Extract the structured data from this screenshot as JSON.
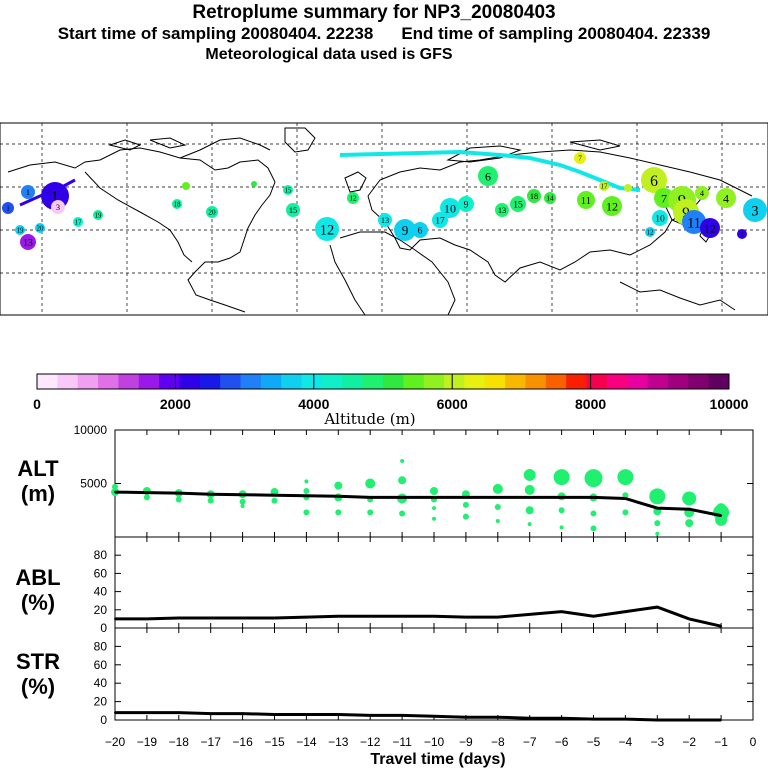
{
  "header": {
    "title": "Retroplume summary for NP3_20080403",
    "start_label": "Start time of sampling 20080404. 22238",
    "end_label": "End time of sampling 20080404. 22339",
    "met_label": "Meteorological data used is GFS"
  },
  "colorbar": {
    "ticks": [
      "0",
      "2000",
      "4000",
      "6000",
      "8000",
      "10000"
    ],
    "label": "Altitude (m)",
    "colors": [
      "#fde8fd",
      "#f8c8f8",
      "#f0a0f0",
      "#e070e8",
      "#c040e0",
      "#9a18e8",
      "#6000f0",
      "#3000e8",
      "#1818e8",
      "#2050f0",
      "#2080f8",
      "#10a8f8",
      "#10d0f0",
      "#10e8e8",
      "#10f0c8",
      "#10f0a0",
      "#20f070",
      "#30e840",
      "#60f020",
      "#90f020",
      "#c0f020",
      "#e8f010",
      "#f8e000",
      "#f8b800",
      "#f89000",
      "#f86000",
      "#f82000",
      "#f80050",
      "#f80080",
      "#e800a0",
      "#c00090",
      "#a00080",
      "#800070",
      "#600060"
    ]
  },
  "map_labels": [
    "1",
    "3",
    "4",
    "6",
    "7",
    "9",
    "10",
    "11",
    "12",
    "13",
    "14",
    "15",
    "16",
    "17",
    "18",
    "19",
    "20"
  ],
  "axes": {
    "alt_label": "ALT",
    "alt_unit": "(m)",
    "abl_label": "ABL",
    "abl_unit": "(%)",
    "str_label": "STR",
    "str_unit": "(%)",
    "xlabel": "Travel time (days)"
  },
  "chart_data": [
    {
      "type": "line",
      "name": "ALT",
      "ylabel": "ALT (m)",
      "ylim": [
        0,
        10000
      ],
      "yticks": [
        5000,
        10000
      ],
      "x": [
        -20,
        -19,
        -18,
        -17,
        -16,
        -15,
        -14,
        -13,
        -12,
        -11,
        -10,
        -9,
        -8,
        -7,
        -6,
        -5,
        -4,
        -3,
        -2,
        -1
      ],
      "values": [
        4200,
        4150,
        4100,
        4000,
        3950,
        3900,
        3850,
        3800,
        3700,
        3700,
        3700,
        3700,
        3700,
        3700,
        3700,
        3700,
        3600,
        2700,
        2600,
        2000
      ],
      "scatter": [
        {
          "x": -20,
          "y": 4200,
          "s": 4
        },
        {
          "x": -20,
          "y": 4700,
          "s": 3
        },
        {
          "x": -19,
          "y": 4300,
          "s": 4
        },
        {
          "x": -19,
          "y": 3700,
          "s": 3
        },
        {
          "x": -18,
          "y": 4100,
          "s": 4
        },
        {
          "x": -18,
          "y": 3500,
          "s": 3
        },
        {
          "x": -17,
          "y": 4000,
          "s": 4
        },
        {
          "x": -17,
          "y": 3400,
          "s": 3
        },
        {
          "x": -16,
          "y": 4000,
          "s": 4
        },
        {
          "x": -16,
          "y": 3300,
          "s": 3
        },
        {
          "x": -16,
          "y": 2900,
          "s": 2
        },
        {
          "x": -15,
          "y": 4200,
          "s": 4
        },
        {
          "x": -15,
          "y": 3400,
          "s": 3
        },
        {
          "x": -14,
          "y": 4300,
          "s": 3
        },
        {
          "x": -14,
          "y": 3700,
          "s": 3
        },
        {
          "x": -14,
          "y": 2300,
          "s": 3
        },
        {
          "x": -14,
          "y": 5200,
          "s": 2
        },
        {
          "x": -13,
          "y": 4800,
          "s": 4
        },
        {
          "x": -13,
          "y": 3700,
          "s": 4
        },
        {
          "x": -13,
          "y": 2300,
          "s": 3
        },
        {
          "x": -12,
          "y": 5000,
          "s": 5
        },
        {
          "x": -12,
          "y": 3500,
          "s": 3
        },
        {
          "x": -12,
          "y": 2300,
          "s": 3
        },
        {
          "x": -11,
          "y": 5300,
          "s": 4
        },
        {
          "x": -11,
          "y": 3600,
          "s": 5
        },
        {
          "x": -11,
          "y": 2200,
          "s": 3
        },
        {
          "x": -11,
          "y": 7100,
          "s": 2
        },
        {
          "x": -10,
          "y": 4300,
          "s": 4
        },
        {
          "x": -10,
          "y": 3500,
          "s": 3
        },
        {
          "x": -10,
          "y": 2700,
          "s": 2
        },
        {
          "x": -10,
          "y": 1700,
          "s": 2
        },
        {
          "x": -9,
          "y": 4000,
          "s": 4
        },
        {
          "x": -9,
          "y": 3000,
          "s": 3
        },
        {
          "x": -9,
          "y": 1900,
          "s": 3
        },
        {
          "x": -8,
          "y": 4500,
          "s": 5
        },
        {
          "x": -8,
          "y": 2800,
          "s": 3
        },
        {
          "x": -8,
          "y": 1500,
          "s": 2
        },
        {
          "x": -7,
          "y": 5800,
          "s": 6
        },
        {
          "x": -7,
          "y": 4400,
          "s": 5
        },
        {
          "x": -7,
          "y": 2500,
          "s": 4
        },
        {
          "x": -7,
          "y": 1200,
          "s": 2
        },
        {
          "x": -6,
          "y": 5600,
          "s": 8
        },
        {
          "x": -6,
          "y": 3800,
          "s": 4
        },
        {
          "x": -6,
          "y": 2500,
          "s": 3
        },
        {
          "x": -6,
          "y": 900,
          "s": 2
        },
        {
          "x": -5,
          "y": 5500,
          "s": 9
        },
        {
          "x": -5,
          "y": 3700,
          "s": 4
        },
        {
          "x": -5,
          "y": 2200,
          "s": 3
        },
        {
          "x": -5,
          "y": 800,
          "s": 3
        },
        {
          "x": -4,
          "y": 5600,
          "s": 8
        },
        {
          "x": -4,
          "y": 3900,
          "s": 3
        },
        {
          "x": -4,
          "y": 2300,
          "s": 3
        },
        {
          "x": -3,
          "y": 3800,
          "s": 8
        },
        {
          "x": -3,
          "y": 2400,
          "s": 4
        },
        {
          "x": -3,
          "y": 1300,
          "s": 3
        },
        {
          "x": -3,
          "y": 300,
          "s": 2
        },
        {
          "x": -2,
          "y": 3600,
          "s": 7
        },
        {
          "x": -2,
          "y": 2300,
          "s": 5
        },
        {
          "x": -2,
          "y": 1300,
          "s": 4
        },
        {
          "x": -1,
          "y": 2300,
          "s": 8
        },
        {
          "x": -1,
          "y": 1600,
          "s": 6
        },
        {
          "x": -1,
          "y": 2700,
          "s": 5
        }
      ]
    },
    {
      "type": "line",
      "name": "ABL",
      "ylabel": "ABL (%)",
      "ylim": [
        0,
        100
      ],
      "yticks": [
        0,
        20,
        40,
        60,
        80
      ],
      "x": [
        -20,
        -19,
        -18,
        -17,
        -16,
        -15,
        -14,
        -13,
        -12,
        -11,
        -10,
        -9,
        -8,
        -7,
        -6,
        -5,
        -4,
        -3,
        -2,
        -1
      ],
      "values": [
        10,
        10,
        11,
        11,
        11,
        11,
        12,
        13,
        13,
        13,
        13,
        12,
        12,
        15,
        18,
        13,
        18,
        23,
        10,
        2
      ]
    },
    {
      "type": "line",
      "name": "STR",
      "ylabel": "STR (%)",
      "ylim": [
        0,
        100
      ],
      "yticks": [
        0,
        20,
        40,
        60,
        80
      ],
      "x": [
        -20,
        -19,
        -18,
        -17,
        -16,
        -15,
        -14,
        -13,
        -12,
        -11,
        -10,
        -9,
        -8,
        -7,
        -6,
        -5,
        -4,
        -3,
        -2,
        -1
      ],
      "values": [
        8,
        8,
        8,
        7,
        7,
        6,
        6,
        6,
        5,
        5,
        4,
        3,
        3,
        2,
        2,
        1,
        1,
        0,
        0,
        0
      ],
      "xlabel": "Travel time (days)",
      "xticks": [
        -20,
        -19,
        -18,
        -17,
        -16,
        -15,
        -14,
        -13,
        -12,
        -11,
        -10,
        -9,
        -8,
        -7,
        -6,
        -5,
        -4,
        -3,
        -2,
        -1,
        0
      ]
    }
  ]
}
